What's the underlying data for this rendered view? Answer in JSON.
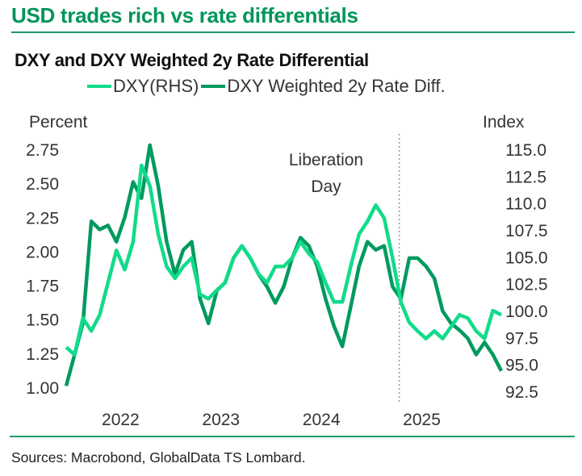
{
  "header": {
    "title": "USD trades rich vs rate differentials",
    "subtitle": "DXY and DXY Weighted 2y Rate Differential"
  },
  "footer": {
    "sources": "Sources: Macrobond, GlobalData TS Lombard."
  },
  "colors": {
    "brand": "#00965a",
    "dxy": "#12db8a",
    "rate_diff": "#009a5e"
  },
  "chart_data": {
    "type": "line",
    "title": "DXY and DXY Weighted 2y Rate Differential",
    "left_axis": {
      "label": "Percent",
      "range": [
        1.0,
        2.75
      ],
      "ticks": [
        "1.00",
        "1.25",
        "1.50",
        "1.75",
        "2.00",
        "2.25",
        "2.50",
        "2.75"
      ]
    },
    "right_axis": {
      "label": "Index",
      "range": [
        92.5,
        115.0
      ],
      "ticks": [
        "92.5",
        "95.0",
        "97.5",
        "100.0",
        "102.5",
        "105.0",
        "107.5",
        "110.0",
        "112.5",
        "115.0"
      ]
    },
    "x_ticks": [
      "2022",
      "2023",
      "2024",
      "2025"
    ],
    "grid": false,
    "legend_position": "top",
    "annotation": {
      "text_line1": "Liberation",
      "text_line2": "Day",
      "date": "2025-04"
    },
    "x": [
      "2021-12",
      "2022-01",
      "2022-02",
      "2022-03",
      "2022-04",
      "2022-05",
      "2022-06",
      "2022-07",
      "2022-08",
      "2022-09",
      "2022-10",
      "2022-11",
      "2022-12",
      "2023-01",
      "2023-02",
      "2023-03",
      "2023-04",
      "2023-05",
      "2023-06",
      "2023-07",
      "2023-08",
      "2023-09",
      "2023-10",
      "2023-11",
      "2023-12",
      "2024-01",
      "2024-02",
      "2024-03",
      "2024-04",
      "2024-05",
      "2024-06",
      "2024-07",
      "2024-08",
      "2024-09",
      "2024-10",
      "2024-11",
      "2024-12",
      "2025-01",
      "2025-02",
      "2025-03",
      "2025-04",
      "2025-05",
      "2025-06",
      "2025-07",
      "2025-08",
      "2025-09",
      "2025-10",
      "2025-11",
      "2025-12",
      "2026-01",
      "2026-02",
      "2026-03",
      "2026-04"
    ],
    "series": [
      {
        "name": "DXY(RHS)",
        "axis": "right",
        "values": [
          96.6,
          95.9,
          99.3,
          98.1,
          99.6,
          102.6,
          105.6,
          103.8,
          106.4,
          113.5,
          111.6,
          107.1,
          104.1,
          103.0,
          104.1,
          104.9,
          101.5,
          101.1,
          101.9,
          102.6,
          104.9,
          106.0,
          104.9,
          103.4,
          102.6,
          104.1,
          104.1,
          104.9,
          106.4,
          105.3,
          104.5,
          102.6,
          100.8,
          100.8,
          104.1,
          107.1,
          108.3,
          109.8,
          108.6,
          104.9,
          100.8,
          98.9,
          98.1,
          97.4,
          98.1,
          97.4,
          98.5,
          99.6,
          99.3,
          98.1,
          97.4,
          100.0,
          99.6
        ]
      },
      {
        "name": "DXY Weighted 2y Rate Diff.",
        "axis": "left",
        "values": [
          1.01,
          1.24,
          1.47,
          2.22,
          2.16,
          2.19,
          2.07,
          2.25,
          2.51,
          2.39,
          2.78,
          2.48,
          2.07,
          1.83,
          2.01,
          2.07,
          1.65,
          1.47,
          1.71,
          1.77,
          1.95,
          2.04,
          1.95,
          1.83,
          1.74,
          1.62,
          1.74,
          1.95,
          2.1,
          2.04,
          1.89,
          1.65,
          1.45,
          1.3,
          1.59,
          1.89,
          2.07,
          2.01,
          2.04,
          1.74,
          1.65,
          1.95,
          1.95,
          1.89,
          1.8,
          1.56,
          1.47,
          1.42,
          1.36,
          1.24,
          1.33,
          1.24,
          1.12
        ]
      }
    ]
  }
}
